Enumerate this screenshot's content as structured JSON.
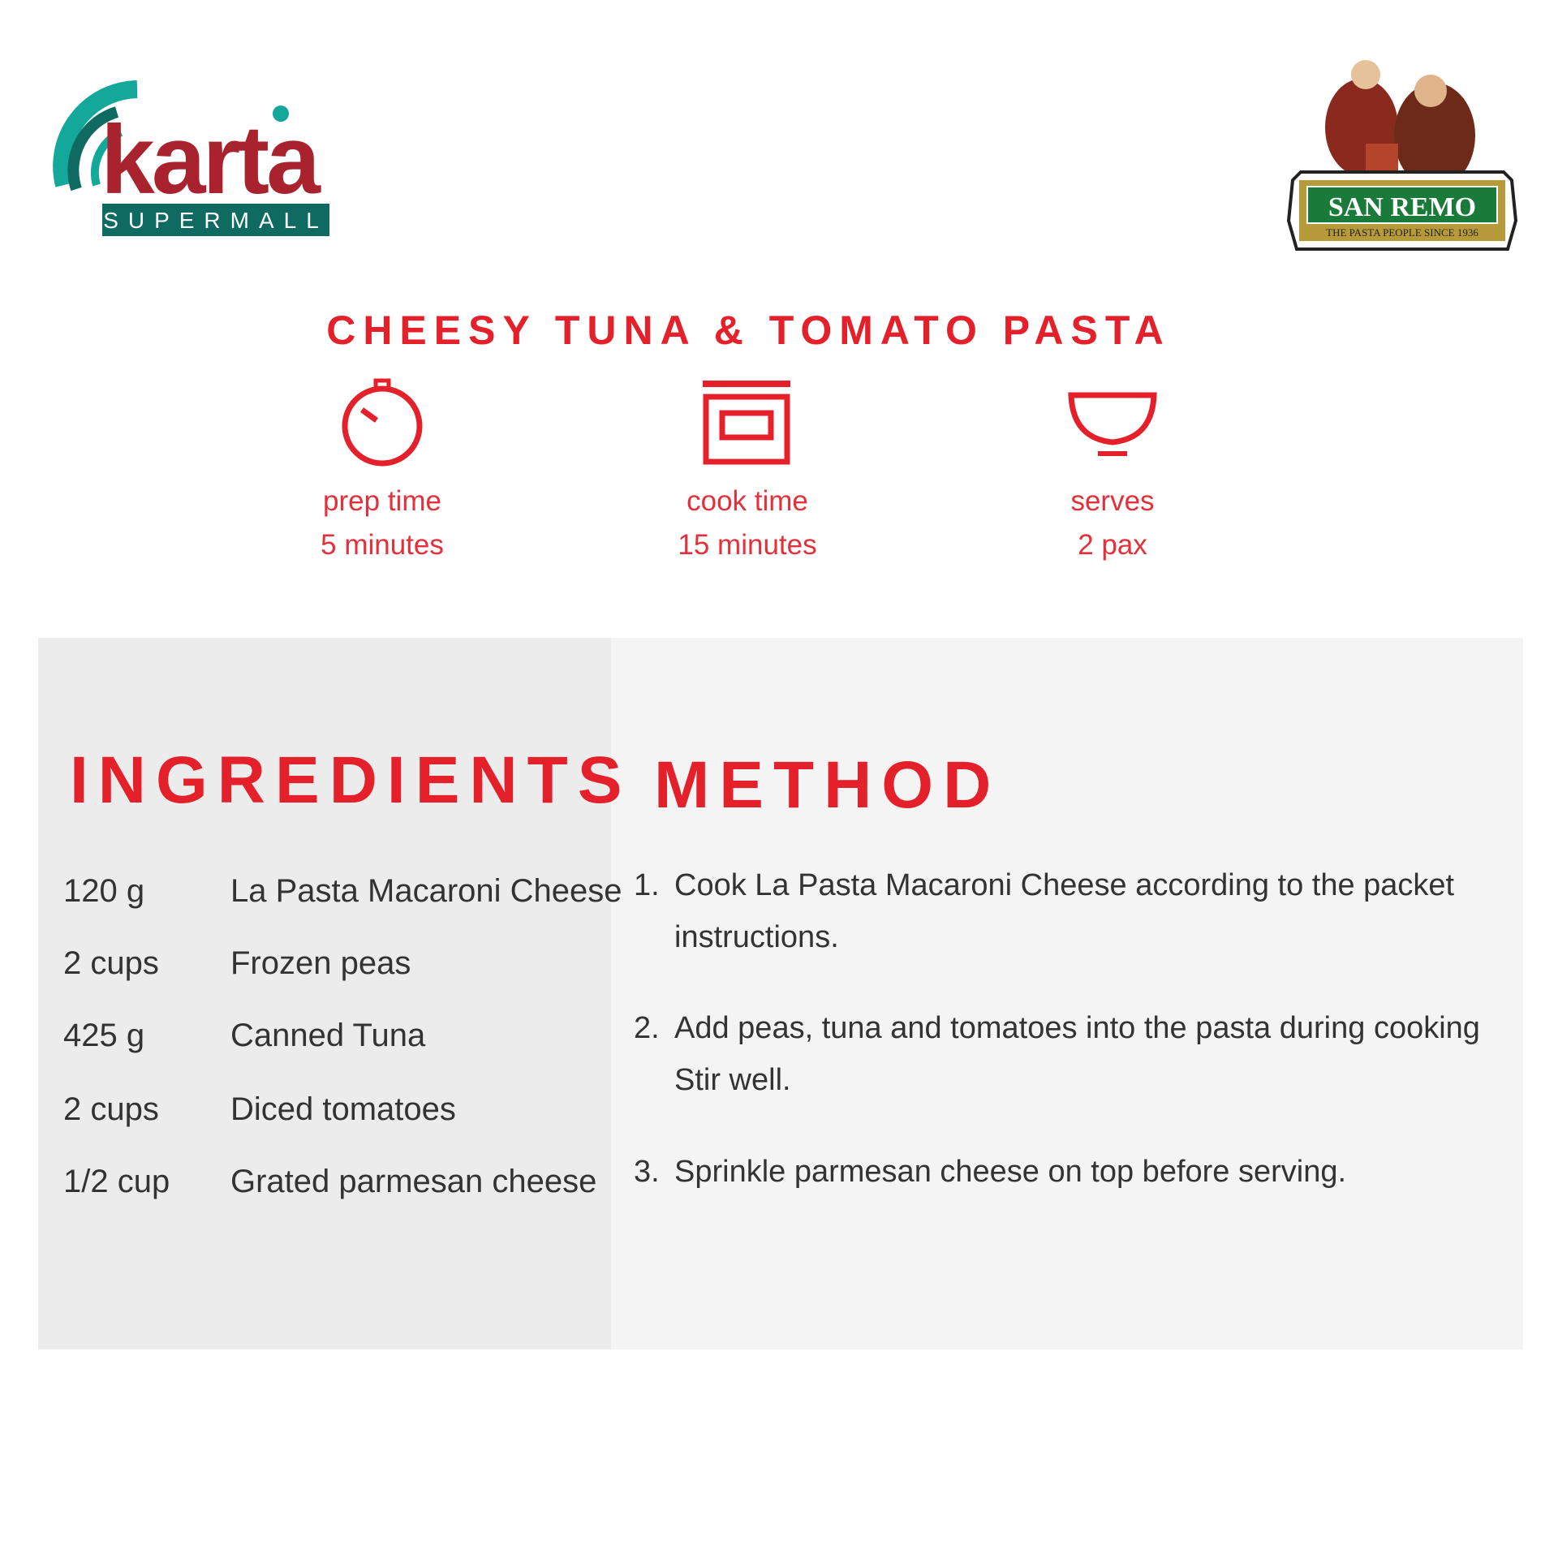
{
  "logos": {
    "karta": {
      "name": "karta",
      "tagline": "SUPERMALL",
      "colors": {
        "teal": "#14a89a",
        "red": "#a8232e",
        "dark_teal": "#0f6b62"
      }
    },
    "san_remo": {
      "name": "SAN REMO",
      "tagline": "THE PASTA PEOPLE SINCE 1936",
      "colors": {
        "green": "#1a7a3a",
        "gold": "#b79a3a"
      }
    }
  },
  "recipe": {
    "title": "CHEESY TUNA & TOMATO PASTA",
    "meta": [
      {
        "icon": "stopwatch-icon",
        "label": "prep time",
        "value": "5 minutes"
      },
      {
        "icon": "oven-icon",
        "label": "cook time",
        "value": "15 minutes"
      },
      {
        "icon": "bowl-icon",
        "label": "serves",
        "value": "2 pax"
      }
    ],
    "ingredients_heading": "INGREDIENTS",
    "ingredients": [
      {
        "qty": "120 g",
        "item": "La Pasta Macaroni Cheese"
      },
      {
        "qty": "2 cups",
        "item": "Frozen peas"
      },
      {
        "qty": "425 g",
        "item": "Canned Tuna"
      },
      {
        "qty": "2 cups",
        "item": "Diced tomatoes"
      },
      {
        "qty": "1/2 cup",
        "item": "Grated parmesan cheese"
      }
    ],
    "method_heading": "METHOD",
    "method": [
      {
        "num": "1.",
        "lines": [
          "Cook La Pasta Macaroni Cheese according to the packet",
          "instructions."
        ]
      },
      {
        "num": "2.",
        "lines": [
          "Add peas, tuna and tomatoes into the pasta during cooking",
          "Stir well."
        ]
      },
      {
        "num": "3.",
        "lines": [
          "Sprinkle parmesan cheese on top before serving."
        ]
      }
    ]
  },
  "colors": {
    "accent": "#e4202a",
    "panel_left": "#ececec",
    "panel_right": "#f4f4f4",
    "text": "#333333"
  }
}
